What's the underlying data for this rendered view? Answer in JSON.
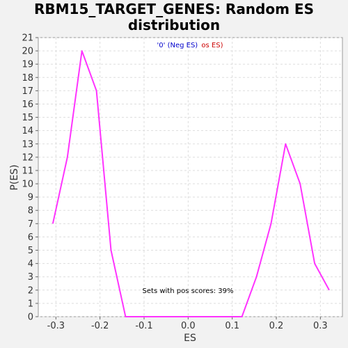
{
  "chart_data": {
    "type": "line",
    "title": [
      "RBM15_TARGET_GENES: Random ES",
      "distribution"
    ],
    "xlabel": "ES",
    "ylabel": "P(ES)",
    "xlim": [
      -0.34,
      0.35
    ],
    "ylim": [
      0,
      21
    ],
    "x_ticks": [
      -0.3,
      -0.2,
      -0.1,
      0.0,
      0.1,
      0.2,
      0.3
    ],
    "x_tick_labels": [
      "-0.3",
      "-0.2",
      "-0.1",
      "0.0",
      "0.1",
      "0.2",
      "0.3"
    ],
    "y_ticks": [
      0,
      1,
      2,
      3,
      4,
      5,
      6,
      7,
      8,
      9,
      10,
      11,
      12,
      13,
      14,
      15,
      16,
      17,
      18,
      19,
      20,
      21
    ],
    "grid": true,
    "series": [
      {
        "color": "#ff33ff",
        "x": [
          -0.307,
          -0.274,
          -0.241,
          -0.208,
          -0.175,
          -0.142,
          -0.109,
          -0.076,
          -0.043,
          -0.01,
          0.023,
          0.056,
          0.089,
          0.122,
          0.155,
          0.188,
          0.221,
          0.254,
          0.287,
          0.32
        ],
        "y": [
          7,
          12,
          20,
          17,
          5,
          0,
          0,
          0,
          0,
          0,
          0,
          0,
          0,
          0,
          3,
          7,
          13,
          10,
          4,
          2
        ]
      }
    ],
    "legend": {
      "placement": "top-center",
      "parts": [
        {
          "text": "'0' (Neg ES)",
          "color": "#0000cc"
        },
        {
          "text": "os ES)",
          "color": "#cc0000"
        }
      ]
    },
    "annotation": "Sets with pos scores: 39%"
  }
}
